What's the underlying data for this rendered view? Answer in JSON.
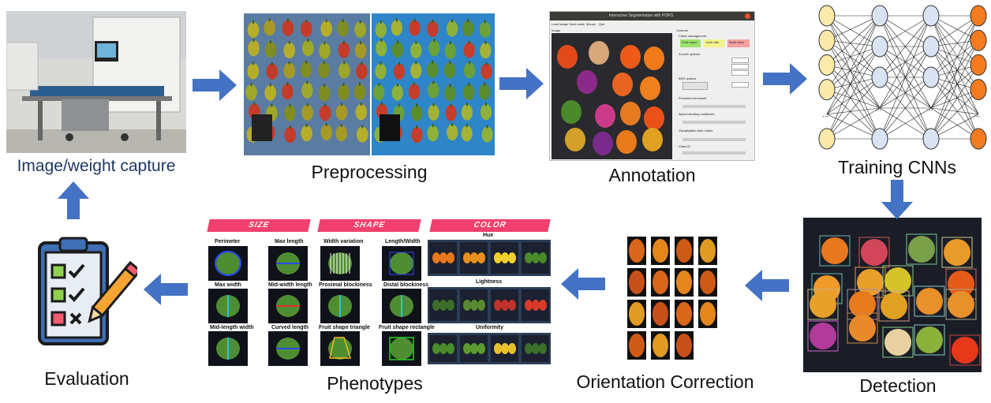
{
  "stages": {
    "capture": "Image/weight capture",
    "preprocessing": "Preprocessing",
    "annotation": "Annotation",
    "training": "Training CNNs",
    "detection": "Detection",
    "orientation": "Orientation Correction",
    "phenotypes": "Phenotypes",
    "evaluation": "Evaluation"
  },
  "annotation_window": {
    "title": "Interactive Segmentation with PORS",
    "menu": [
      "Load image",
      "Save mask",
      "Mouse",
      "Quit"
    ],
    "image_label": "Image",
    "controls_label": "Controls",
    "buttons": [
      "Finish object",
      "Undo click",
      "Reset clicks"
    ],
    "sections": [
      "Clicks management",
      "Zoom& options",
      "BRS options",
      "Prediction threshold",
      "Alpha blending coefficient",
      "Visualization click radius",
      "Class ID"
    ]
  },
  "phenotypes": {
    "banners": {
      "size": "SIZE",
      "shape": "SHAPE",
      "color": "COLOR"
    },
    "size_items": [
      "Perimeter",
      "Max length",
      "Max width",
      "Mid-width length",
      "Mid-length width",
      "Curved length"
    ],
    "shape_items": [
      "Width variation",
      "Length/Width",
      "Proximal blockiness",
      "Distal blockiness",
      "Fruit shape triangle",
      "Fruit shape rectangle"
    ],
    "color_items": [
      "Hue",
      "Lightness",
      "Uniformity"
    ]
  },
  "colors": {
    "arrow": "#4472c4",
    "input_node": "#fde9a9",
    "hidden_node": "#dae3f3",
    "output_node": "#f47b20",
    "banner": "#f0406e",
    "checklist_body": "#3f6fb5"
  }
}
